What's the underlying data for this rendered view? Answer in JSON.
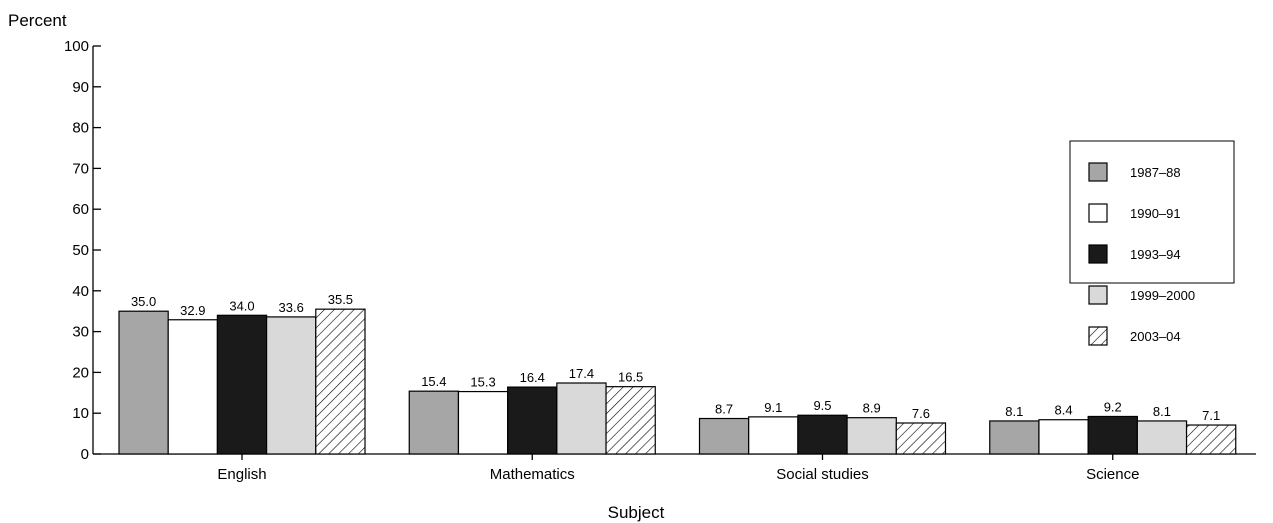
{
  "chart_data": {
    "type": "bar",
    "ylabel": "Percent",
    "xlabel": "Subject",
    "ylim": [
      0,
      100
    ],
    "yticks": [
      0,
      10,
      20,
      30,
      40,
      50,
      60,
      70,
      80,
      90,
      100
    ],
    "grid": false,
    "legend_position": "top-right",
    "categories": [
      "English",
      "Mathematics",
      "Social studies",
      "Science"
    ],
    "series": [
      {
        "name": "1987–88",
        "values": [
          35.0,
          15.4,
          8.7,
          8.1
        ],
        "labels": [
          "35.0",
          "15.4",
          "8.7",
          "8.1"
        ],
        "fill": "#a6a6a6",
        "pattern": "solid"
      },
      {
        "name": "1990–91",
        "values": [
          32.9,
          15.3,
          9.1,
          8.4
        ],
        "labels": [
          "32.9",
          "15.3",
          "9.1",
          "8.4"
        ],
        "fill": "#ffffff",
        "pattern": "solid"
      },
      {
        "name": "1993–94",
        "values": [
          34.0,
          16.4,
          9.5,
          9.2
        ],
        "labels": [
          "34.0",
          "16.4",
          "9.5",
          "9.2"
        ],
        "fill": "#1a1a1a",
        "pattern": "solid"
      },
      {
        "name": "1999–2000",
        "values": [
          33.6,
          17.4,
          8.9,
          8.1
        ],
        "labels": [
          "33.6",
          "17.4",
          "8.9",
          "8.1"
        ],
        "fill": "#d9d9d9",
        "pattern": "solid"
      },
      {
        "name": "2003–04",
        "values": [
          35.5,
          16.5,
          7.6,
          7.1
        ],
        "labels": [
          "35.5",
          "16.5",
          "7.6",
          "7.1"
        ],
        "fill": "#ffffff",
        "pattern": "diagonal-hatch"
      }
    ]
  }
}
